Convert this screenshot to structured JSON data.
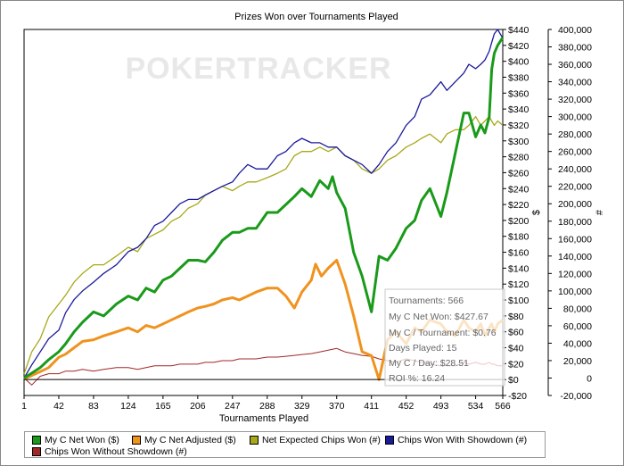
{
  "chart_data": {
    "type": "line",
    "title": "Prizes Won over Tournaments Played",
    "xlabel": "Tournaments Played",
    "ylabel_right1": "$",
    "ylabel_right2": "#",
    "x_ticks": [
      1,
      42,
      83,
      124,
      165,
      206,
      247,
      288,
      329,
      370,
      411,
      452,
      493,
      534,
      566
    ],
    "xlim": [
      1,
      566
    ],
    "y_dollar_ticks": [
      "$440",
      "$420",
      "$400",
      "$380",
      "$360",
      "$340",
      "$320",
      "$300",
      "$280",
      "$260",
      "$240",
      "$220",
      "$200",
      "$180",
      "$160",
      "$140",
      "$120",
      "$100",
      "$80",
      "$60",
      "$40",
      "$20",
      "$0",
      "-$20"
    ],
    "ylim_dollar": [
      -20,
      440
    ],
    "y_chips_ticks": [
      "400,000",
      "380,000",
      "360,000",
      "340,000",
      "320,000",
      "300,000",
      "280,000",
      "260,000",
      "240,000",
      "220,000",
      "200,000",
      "180,000",
      "160,000",
      "140,000",
      "120,000",
      "100,000",
      "80,000",
      "60,000",
      "40,000",
      "20,000",
      "0",
      "-20,000"
    ],
    "ylim_chips": [
      -20000,
      400000
    ],
    "watermark": "POKERTRACKER",
    "series": [
      {
        "name": "My C Net Won ($)",
        "color": "#1a9a1a",
        "axis": "dollar",
        "width": 3,
        "x": [
          1,
          10,
          20,
          30,
          42,
          50,
          60,
          70,
          83,
          95,
          110,
          124,
          135,
          145,
          155,
          165,
          175,
          185,
          195,
          206,
          215,
          225,
          235,
          247,
          255,
          265,
          275,
          288,
          300,
          310,
          320,
          329,
          340,
          350,
          360,
          365,
          370,
          380,
          390,
          400,
          411,
          420,
          430,
          440,
          452,
          462,
          470,
          480,
          493,
          500,
          510,
          520,
          526,
          534,
          540,
          545,
          550,
          553,
          556,
          560,
          566
        ],
        "y": [
          2,
          8,
          15,
          25,
          35,
          45,
          60,
          72,
          85,
          80,
          95,
          105,
          100,
          115,
          110,
          125,
          130,
          140,
          150,
          150,
          148,
          160,
          175,
          185,
          185,
          190,
          190,
          210,
          210,
          220,
          230,
          240,
          230,
          250,
          240,
          255,
          235,
          215,
          160,
          130,
          85,
          155,
          150,
          165,
          190,
          200,
          225,
          240,
          205,
          235,
          285,
          335,
          335,
          305,
          320,
          310,
          330,
          390,
          410,
          420,
          430
        ]
      },
      {
        "name": "My C Net Adjusted ($)",
        "color": "#f0921e",
        "axis": "dollar",
        "width": 3,
        "x": [
          1,
          10,
          20,
          30,
          42,
          50,
          60,
          70,
          83,
          95,
          110,
          124,
          135,
          145,
          155,
          165,
          175,
          185,
          195,
          206,
          215,
          225,
          235,
          247,
          255,
          265,
          275,
          288,
          300,
          310,
          320,
          329,
          340,
          345,
          352,
          360,
          370,
          380,
          390,
          400,
          411,
          420,
          430,
          440,
          452,
          462,
          470,
          480,
          493,
          500,
          510,
          520,
          526,
          534,
          540,
          545,
          550,
          553,
          556,
          560,
          566
        ],
        "y": [
          1,
          5,
          10,
          15,
          28,
          32,
          40,
          48,
          50,
          55,
          60,
          65,
          60,
          68,
          65,
          70,
          75,
          80,
          85,
          90,
          92,
          95,
          100,
          103,
          100,
          105,
          110,
          115,
          115,
          105,
          90,
          110,
          125,
          145,
          130,
          140,
          150,
          120,
          80,
          35,
          30,
          0,
          50,
          60,
          45,
          65,
          60,
          75,
          70,
          60,
          55,
          75,
          65,
          60,
          70,
          55,
          65,
          70,
          60,
          70,
          75
        ]
      },
      {
        "name": "Net Expected Chips Won (#)",
        "color": "#a8a81a",
        "axis": "chips",
        "width": 1.3,
        "x": [
          1,
          10,
          20,
          30,
          42,
          50,
          60,
          70,
          83,
          95,
          110,
          124,
          135,
          145,
          155,
          165,
          175,
          185,
          195,
          206,
          215,
          225,
          235,
          247,
          255,
          265,
          275,
          288,
          300,
          310,
          320,
          329,
          340,
          350,
          360,
          370,
          380,
          390,
          400,
          411,
          420,
          430,
          440,
          452,
          462,
          470,
          480,
          493,
          500,
          510,
          520,
          526,
          534,
          540,
          545,
          550,
          553,
          556,
          560,
          566
        ],
        "y": [
          5000,
          30000,
          45000,
          70000,
          85000,
          95000,
          110000,
          120000,
          130000,
          130000,
          140000,
          150000,
          145000,
          160000,
          165000,
          170000,
          180000,
          185000,
          195000,
          200000,
          210000,
          215000,
          220000,
          215000,
          220000,
          225000,
          225000,
          230000,
          235000,
          240000,
          255000,
          260000,
          260000,
          265000,
          260000,
          265000,
          255000,
          250000,
          240000,
          235000,
          240000,
          250000,
          255000,
          265000,
          270000,
          275000,
          280000,
          270000,
          280000,
          285000,
          285000,
          290000,
          300000,
          290000,
          295000,
          300000,
          295000,
          290000,
          295000,
          290000
        ]
      },
      {
        "name": "Chips Won With Showdown (#)",
        "color": "#1a1a9a",
        "axis": "chips",
        "width": 1.3,
        "x": [
          1,
          10,
          20,
          30,
          42,
          50,
          60,
          70,
          83,
          95,
          110,
          124,
          135,
          145,
          155,
          165,
          175,
          185,
          195,
          206,
          215,
          225,
          235,
          247,
          255,
          265,
          275,
          288,
          300,
          310,
          320,
          329,
          340,
          350,
          360,
          370,
          380,
          390,
          400,
          411,
          420,
          430,
          440,
          452,
          462,
          470,
          480,
          493,
          500,
          510,
          520,
          526,
          534,
          540,
          545,
          550,
          553,
          556,
          560,
          566
        ],
        "y": [
          0,
          15000,
          30000,
          45000,
          55000,
          75000,
          90000,
          100000,
          110000,
          120000,
          130000,
          145000,
          150000,
          160000,
          175000,
          180000,
          190000,
          200000,
          205000,
          205000,
          210000,
          215000,
          220000,
          225000,
          235000,
          245000,
          240000,
          240000,
          255000,
          260000,
          270000,
          275000,
          270000,
          270000,
          265000,
          265000,
          255000,
          250000,
          245000,
          235000,
          245000,
          260000,
          270000,
          290000,
          300000,
          320000,
          325000,
          340000,
          330000,
          340000,
          350000,
          360000,
          355000,
          360000,
          365000,
          375000,
          385000,
          395000,
          400000,
          390000
        ]
      },
      {
        "name": "Chips Won Without Showdown (#)",
        "color": "#a02828",
        "axis": "chips",
        "width": 1,
        "x": [
          1,
          10,
          20,
          30,
          42,
          50,
          60,
          70,
          83,
          95,
          110,
          124,
          135,
          145,
          155,
          165,
          175,
          185,
          195,
          206,
          215,
          225,
          235,
          247,
          255,
          265,
          275,
          288,
          300,
          310,
          320,
          329,
          340,
          350,
          360,
          370,
          380,
          390,
          400,
          411,
          420,
          430,
          440,
          452,
          462,
          470,
          480,
          493,
          500,
          510,
          520,
          526,
          534,
          540,
          545,
          550,
          553,
          556,
          560,
          566
        ],
        "y": [
          0,
          -8000,
          2000,
          5000,
          5000,
          8000,
          8000,
          10000,
          8000,
          10000,
          12000,
          12000,
          10000,
          12000,
          14000,
          14000,
          14000,
          16000,
          16000,
          16000,
          18000,
          18000,
          20000,
          20000,
          22000,
          22000,
          22000,
          24000,
          24000,
          25000,
          26000,
          27000,
          28000,
          30000,
          32000,
          34000,
          30000,
          28000,
          26000,
          25000,
          22000,
          20000,
          18000,
          22000,
          20000,
          18000,
          16000,
          14000,
          14000,
          14000,
          18000,
          16000,
          18000,
          16000,
          16000,
          18000,
          16000,
          16000,
          14000,
          14000
        ]
      }
    ],
    "tooltip": [
      "Tournaments: 566",
      "My C Net Won: $427.67",
      "My C / Tournament: $0.76",
      "Days Played: 15",
      "My C / Day: $28.51",
      "ROI %: 16.24"
    ]
  }
}
